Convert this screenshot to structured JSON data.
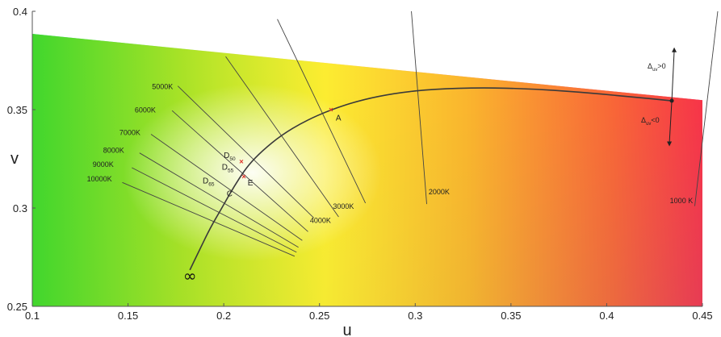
{
  "chart_data": {
    "type": "diagram",
    "xlabel": "u",
    "ylabel": "v",
    "xlim": [
      0.1,
      0.45
    ],
    "ylim": [
      0.25,
      0.4
    ],
    "xticks": [
      "0.1",
      "0.15",
      "0.2",
      "0.25",
      "0.3",
      "0.35",
      "0.4",
      "0.45"
    ],
    "yticks": [
      "0.4",
      "0.35",
      "0.3",
      "0.25"
    ],
    "planckian_locus": [
      {
        "u": 0.1823,
        "v": 0.2685
      },
      {
        "u": 0.187,
        "v": 0.278
      },
      {
        "u": 0.193,
        "v": 0.29
      },
      {
        "u": 0.199,
        "v": 0.3
      },
      {
        "u": 0.203,
        "v": 0.307
      },
      {
        "u": 0.208,
        "v": 0.315
      },
      {
        "u": 0.213,
        "v": 0.322
      },
      {
        "u": 0.22,
        "v": 0.329
      },
      {
        "u": 0.23,
        "v": 0.337
      },
      {
        "u": 0.242,
        "v": 0.344
      },
      {
        "u": 0.256,
        "v": 0.35
      },
      {
        "u": 0.272,
        "v": 0.355
      },
      {
        "u": 0.29,
        "v": 0.3585
      },
      {
        "u": 0.31,
        "v": 0.3605
      },
      {
        "u": 0.335,
        "v": 0.3612
      },
      {
        "u": 0.36,
        "v": 0.3606
      },
      {
        "u": 0.385,
        "v": 0.359
      },
      {
        "u": 0.41,
        "v": 0.3568
      },
      {
        "u": 0.434,
        "v": 0.3545
      }
    ],
    "isotherms": [
      {
        "label": "10000K",
        "u1": 0.237,
        "v1": 0.2755,
        "u2": 0.147,
        "v2": 0.313,
        "label_u": 0.1285,
        "label_v": 0.3135
      },
      {
        "label": "9000K",
        "u1": 0.238,
        "v1": 0.2775,
        "u2": 0.152,
        "v2": 0.3205,
        "label_u": 0.1315,
        "label_v": 0.321
      },
      {
        "label": "8000K",
        "u1": 0.239,
        "v1": 0.28,
        "u2": 0.156,
        "v2": 0.328,
        "label_u": 0.137,
        "label_v": 0.328
      },
      {
        "label": "7000K",
        "u1": 0.241,
        "v1": 0.2835,
        "u2": 0.162,
        "v2": 0.3375,
        "label_u": 0.1455,
        "label_v": 0.337
      },
      {
        "label": "6000K",
        "u1": 0.244,
        "v1": 0.288,
        "u2": 0.173,
        "v2": 0.3495,
        "label_u": 0.1535,
        "label_v": 0.3485
      },
      {
        "label": "5000K",
        "u1": 0.247,
        "v1": 0.295,
        "u2": 0.176,
        "v2": 0.362,
        "label_u": 0.1625,
        "label_v": 0.3605
      },
      {
        "label": "4000K",
        "u1": 0.26,
        "v1": 0.2955,
        "u2": 0.201,
        "v2": 0.377,
        "label_u": 0.245,
        "label_v": 0.2925
      },
      {
        "label": "3000K",
        "u1": 0.274,
        "v1": 0.3025,
        "u2": 0.228,
        "v2": 0.396,
        "label_u": 0.257,
        "label_v": 0.2995
      },
      {
        "label": "2000K",
        "u1": 0.306,
        "v1": 0.302,
        "u2": 0.298,
        "v2": 0.4,
        "label_u": 0.307,
        "label_v": 0.307
      },
      {
        "label": "1000 K",
        "u1": 0.446,
        "v1": 0.301,
        "u2": 0.458,
        "v2": 0.4,
        "label_u": 0.433,
        "label_v": 0.3025
      }
    ],
    "points": [
      {
        "label": "A",
        "u": 0.256,
        "v": 0.35,
        "label_u": 0.2585,
        "label_v": 0.3445,
        "marker": true
      },
      {
        "label": "E",
        "u": 0.2105,
        "v": 0.316,
        "label_u": 0.2125,
        "label_v": 0.3115,
        "marker": true
      },
      {
        "label": "D",
        "sub": "50",
        "u": 0.2092,
        "v": 0.3236,
        "label_u": 0.2,
        "label_v": 0.3255,
        "marker": true
      },
      {
        "label": "D",
        "sub": "55",
        "u": 0.2044,
        "v": 0.3191,
        "label_u": 0.199,
        "label_v": 0.3195,
        "marker": false
      },
      {
        "label": "D",
        "sub": "65",
        "u": 0.1978,
        "v": 0.3123,
        "label_u": 0.189,
        "label_v": 0.3125,
        "marker": false
      },
      {
        "label": "C",
        "u": 0.2009,
        "v": 0.3073,
        "label_u": 0.2015,
        "label_v": 0.306,
        "marker": false
      }
    ],
    "infinity_label": "∞",
    "duv": {
      "u": 0.434,
      "v": 0.3545,
      "up_to_v": 0.38,
      "down_to_v": 0.333,
      "pos_label": "Δ",
      "pos_sub": "uv",
      "pos_tail": ">0",
      "neg_label": "Δ",
      "neg_sub": "uv",
      "neg_tail": "<0"
    }
  }
}
